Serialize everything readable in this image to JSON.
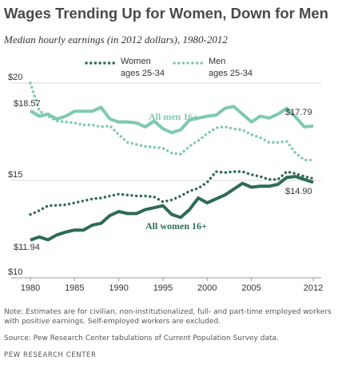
{
  "title": "Wages Trending Up for Women, Down for Men",
  "subtitle": "Median hourly earnings (in 2012 dollars), 1980-2012",
  "note": "Note: Estimates are for civilian, non-institutionalized, full- and part-time employed workers with positive earnings. Self-employed workers are excluded.",
  "source": "Source: Pew Research Center tabulations of Current Population Survey data.",
  "org": "PEW RESEARCH CENTER",
  "colors": {
    "dark": "#2e6b57",
    "light": "#7ec9b0",
    "text": "#333333",
    "grid": "#d9d9d9"
  },
  "chart_data": {
    "type": "line",
    "title": "Wages Trending Up for Women, Down for Men",
    "subtitle": "Median hourly earnings (in 2012 dollars), 1980-2012",
    "x": [
      1980,
      1981,
      1982,
      1983,
      1984,
      1985,
      1986,
      1987,
      1988,
      1989,
      1990,
      1991,
      1992,
      1993,
      1994,
      1995,
      1996,
      1997,
      1998,
      1999,
      2000,
      2001,
      2002,
      2003,
      2004,
      2005,
      2006,
      2007,
      2008,
      2009,
      2010,
      2011,
      2012
    ],
    "ylim": [
      10,
      20
    ],
    "yticks": [
      10,
      15,
      20
    ],
    "ytick_labels": [
      "$10",
      "$15",
      "$20"
    ],
    "xticks": [
      1980,
      1985,
      1990,
      1995,
      2000,
      2005,
      2012
    ],
    "xtick_labels": [
      "1980",
      "1985",
      "1990",
      "1995",
      "2000",
      "2005",
      "2012"
    ],
    "grid": "horizontal",
    "legend_position": "top",
    "series": [
      {
        "name": "Women ages 25-34",
        "style": "dotted",
        "color": "#2e6b57",
        "values": [
          13.25,
          13.45,
          13.7,
          13.72,
          13.75,
          13.85,
          13.95,
          14.05,
          14.1,
          14.2,
          14.3,
          14.25,
          14.2,
          14.2,
          14.15,
          13.9,
          14.0,
          14.2,
          14.45,
          14.6,
          14.9,
          15.45,
          15.4,
          15.45,
          15.45,
          15.3,
          15.2,
          15.05,
          15.05,
          15.45,
          15.35,
          15.2,
          15.1
        ]
      },
      {
        "name": "Men ages 25-34",
        "style": "dotted",
        "color": "#7ec9b0",
        "values": [
          20.0,
          18.57,
          18.3,
          18.05,
          18.0,
          17.95,
          17.85,
          17.85,
          17.75,
          17.8,
          17.35,
          16.95,
          16.85,
          16.75,
          16.7,
          16.65,
          16.4,
          16.35,
          16.75,
          17.05,
          17.4,
          17.7,
          17.75,
          17.65,
          17.6,
          17.35,
          17.2,
          16.95,
          16.95,
          17.0,
          16.4,
          16.05,
          16.05
        ]
      },
      {
        "name": "All men 16+",
        "style": "solid",
        "color": "#7ec9b0",
        "values": [
          18.57,
          18.3,
          18.4,
          18.15,
          18.3,
          18.55,
          18.55,
          18.55,
          18.75,
          18.15,
          18.0,
          18.0,
          17.95,
          17.75,
          18.05,
          17.65,
          17.45,
          17.6,
          18.1,
          18.2,
          18.3,
          18.35,
          18.7,
          18.8,
          18.4,
          18.0,
          18.3,
          18.2,
          18.4,
          18.7,
          18.25,
          17.75,
          17.79
        ]
      },
      {
        "name": "All women 16+",
        "style": "solid",
        "color": "#2e6b57",
        "values": [
          11.94,
          12.1,
          11.95,
          12.2,
          12.35,
          12.45,
          12.45,
          12.7,
          12.8,
          13.2,
          13.4,
          13.3,
          13.3,
          13.5,
          13.6,
          13.7,
          13.25,
          13.1,
          13.5,
          14.1,
          13.85,
          14.05,
          14.25,
          14.55,
          14.85,
          14.65,
          14.7,
          14.7,
          14.8,
          15.15,
          15.2,
          15.05,
          14.9
        ]
      }
    ],
    "annotations": [
      {
        "text": "$18.57",
        "series": "All men 16+",
        "x": 1980
      },
      {
        "text": "$17.79",
        "series": "All men 16+",
        "x": 2012
      },
      {
        "text": "$11.94",
        "series": "All women 16+",
        "x": 1980
      },
      {
        "text": "$14.90",
        "series": "All women 16+",
        "x": 2012
      },
      {
        "text": "All men 16+",
        "series": "All men 16+"
      },
      {
        "text": "All women 16+",
        "series": "All women 16+"
      }
    ],
    "legend": [
      {
        "line1": "Women",
        "line2": "ages 25-34",
        "series": "Women ages 25-34"
      },
      {
        "line1": "Men",
        "line2": "ages 25-34",
        "series": "Men ages 25-34"
      }
    ]
  }
}
